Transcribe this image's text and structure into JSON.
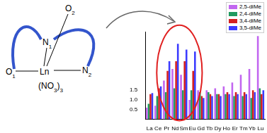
{
  "diagram": {
    "labels": [
      {
        "id": "O2",
        "parts": [
          {
            "t": "O"
          },
          {
            "t": "2",
            "sub": true
          }
        ]
      },
      {
        "id": "N1",
        "parts": [
          {
            "t": "N"
          },
          {
            "t": "1",
            "sub": true
          }
        ]
      },
      {
        "id": "N2",
        "parts": [
          {
            "t": "N"
          },
          {
            "t": "2",
            "sub": true
          }
        ]
      },
      {
        "id": "O1",
        "parts": [
          {
            "t": "O"
          },
          {
            "t": "1",
            "sub": true
          }
        ]
      },
      {
        "id": "Ln",
        "parts": [
          {
            "t": "Ln"
          }
        ]
      },
      {
        "id": "NO3",
        "parts": [
          {
            "t": "(NO"
          },
          {
            "t": "3",
            "sub": true
          },
          {
            "t": ")"
          },
          {
            "t": "3",
            "sub": true
          }
        ]
      }
    ]
  },
  "chart_data": {
    "type": "bar",
    "categories": [
      "La",
      "Ce",
      "Pr",
      "Nd",
      "Sm",
      "Eu",
      "Gd",
      "Tb",
      "Dy",
      "Ho",
      "Er",
      "Tm",
      "Yb",
      "Lu"
    ],
    "series": [
      {
        "name": "2,5-diMe",
        "color": "#c266f0",
        "values": [
          0.6,
          0.7,
          2.0,
          2.6,
          2.3,
          1.0,
          1.5,
          1.5,
          1.6,
          1.7,
          1.9,
          2.3,
          2.6,
          4.3
        ]
      },
      {
        "name": "2,4-diMe",
        "color": "#1f9a5f",
        "values": [
          0.8,
          1.2,
          1.4,
          1.6,
          1.5,
          1.5,
          1.4,
          1.4,
          1.3,
          1.3,
          1.2,
          1.2,
          1.1,
          1.6
        ]
      },
      {
        "name": "3,4-diMe",
        "color": "#d42020",
        "values": [
          1.3,
          1.6,
          2.5,
          3.0,
          3.0,
          2.5,
          1.2,
          1.3,
          1.3,
          1.4,
          1.4,
          1.4,
          1.5,
          1.3
        ]
      },
      {
        "name": "3,5-diMe",
        "color": "#3b3bff",
        "values": [
          1.35,
          1.7,
          3.0,
          3.9,
          3.6,
          3.5,
          1.1,
          1.2,
          1.2,
          1.3,
          1.3,
          1.3,
          1.4,
          1.5
        ]
      }
    ],
    "ylim": [
      0,
      4.5
    ],
    "yticks": [
      0.5,
      {
        "value": 1.0,
        "label": "1.0"
      },
      1.5
    ],
    "grid": false,
    "legend": "top-right"
  }
}
